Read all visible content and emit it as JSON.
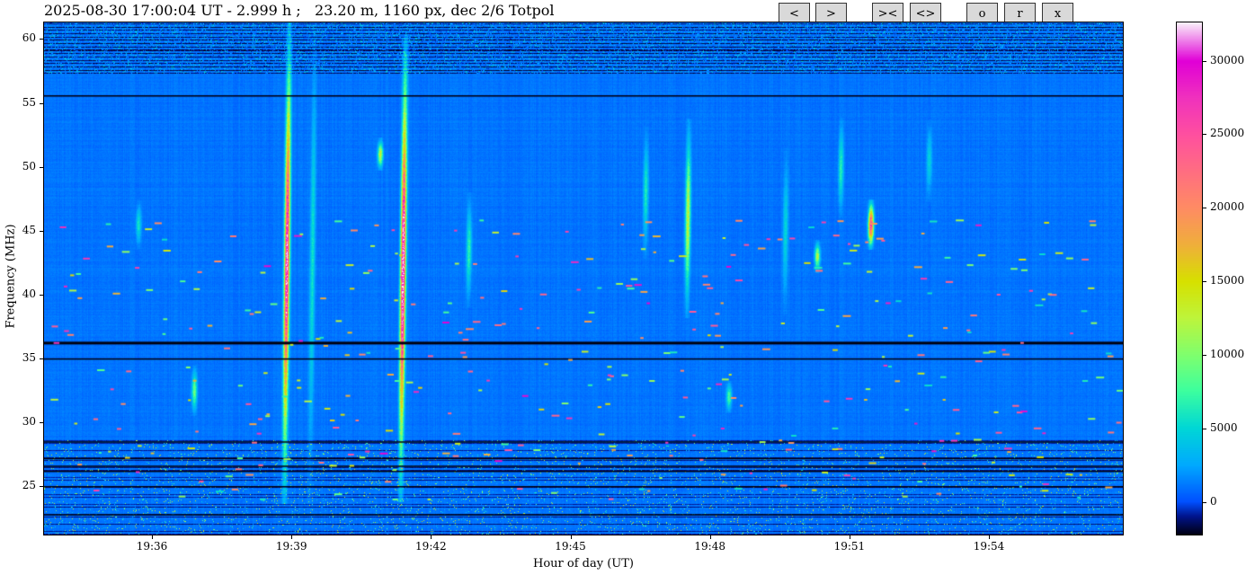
{
  "header": {
    "title": "2025-08-30 17:00:04 UT - 2.999 h ;   23.20 m, 1160 px, dec 2/6 Totpol"
  },
  "toolbar": {
    "buttons": [
      {
        "name": "prev-button",
        "label": "<"
      },
      {
        "name": "next-button",
        "label": ">"
      },
      {
        "name": "zoom-in-button",
        "label": "><"
      },
      {
        "name": "zoom-out-button",
        "label": "<>"
      },
      {
        "name": "o-button",
        "label": "o"
      },
      {
        "name": "r-button",
        "label": "r"
      },
      {
        "name": "x-button",
        "label": "x"
      }
    ]
  },
  "chart_data": {
    "type": "heatmap",
    "title": "2025-08-30 17:00:04 UT - 2.999 h ;   23.20 m, 1160 px, dec 2/6 Totpol",
    "xlabel": "Hour of day (UT)",
    "ylabel": "Frequency (MHz)",
    "xlim_minutes_of_day": [
      1173.68,
      1196.88
    ],
    "ylim": [
      21.2,
      61.3
    ],
    "x_ticks": [
      {
        "label": "19:36",
        "min": 1176
      },
      {
        "label": "19:39",
        "min": 1179
      },
      {
        "label": "19:42",
        "min": 1182
      },
      {
        "label": "19:45",
        "min": 1185
      },
      {
        "label": "19:48",
        "min": 1188
      },
      {
        "label": "19:51",
        "min": 1191
      },
      {
        "label": "19:54",
        "min": 1194
      }
    ],
    "y_ticks": [
      25,
      30,
      35,
      40,
      45,
      50,
      55,
      60
    ],
    "colorbar": {
      "range": [
        -2200,
        32600
      ],
      "ticks": [
        0,
        5000,
        10000,
        15000,
        20000,
        25000,
        30000
      ],
      "colormap": "gist_ncar-like"
    },
    "background_level": 1000,
    "rfi_lines_mhz": [
      55.6,
      36.3,
      35.0,
      28.5,
      27.2,
      26.6,
      26.2,
      25.0,
      22.8
    ],
    "bursts": [
      {
        "time": 1178.85,
        "f0": 28,
        "f1": 57,
        "peak": 30000
      },
      {
        "time": 1181.35,
        "f0": 28,
        "f1": 56,
        "peak": 32000
      },
      {
        "time": 1191.45,
        "f0": 44,
        "f1": 47,
        "peak": 26000
      },
      {
        "time": 1187.5,
        "f0": 40,
        "f1": 52,
        "peak": 12000
      },
      {
        "time": 1180.9,
        "f0": 50,
        "f1": 52,
        "peak": 12000
      },
      {
        "time": 1190.3,
        "f0": 42,
        "f1": 44,
        "peak": 11000
      },
      {
        "time": 1188.4,
        "f0": 31,
        "f1": 33,
        "peak": 7000
      },
      {
        "time": 1176.9,
        "f0": 31,
        "f1": 34,
        "peak": 8000
      },
      {
        "time": 1182.8,
        "f0": 40,
        "f1": 47,
        "peak": 6000
      },
      {
        "time": 1190.8,
        "f0": 47,
        "f1": 53,
        "peak": 5500
      },
      {
        "time": 1175.7,
        "f0": 44,
        "f1": 47,
        "peak": 5000
      },
      {
        "time": 1186.6,
        "f0": 44,
        "f1": 52,
        "peak": 5000
      },
      {
        "time": 1189.6,
        "f0": 40,
        "f1": 50,
        "peak": 4000
      },
      {
        "time": 1192.7,
        "f0": 48,
        "f1": 53,
        "peak": 4000
      },
      {
        "time": 1179.4,
        "f0": 28,
        "f1": 57,
        "peak": 4500
      }
    ]
  }
}
